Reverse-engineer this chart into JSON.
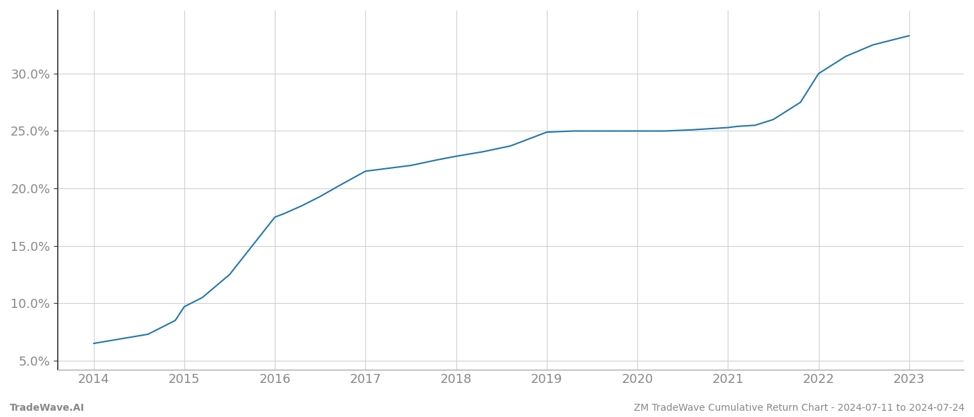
{
  "x_values": [
    2014.0,
    2014.3,
    2014.6,
    2014.9,
    2015.0,
    2015.2,
    2015.5,
    2015.8,
    2016.0,
    2016.1,
    2016.3,
    2016.5,
    2016.7,
    2017.0,
    2017.2,
    2017.5,
    2017.8,
    2018.0,
    2018.3,
    2018.6,
    2019.0,
    2019.3,
    2019.6,
    2020.0,
    2020.3,
    2020.6,
    2021.0,
    2021.1,
    2021.3,
    2021.5,
    2021.8,
    2022.0,
    2022.3,
    2022.6,
    2023.0
  ],
  "y_values": [
    6.5,
    6.9,
    7.3,
    8.5,
    9.7,
    10.5,
    12.5,
    15.5,
    17.5,
    17.8,
    18.5,
    19.3,
    20.2,
    21.5,
    21.7,
    22.0,
    22.5,
    22.8,
    23.2,
    23.7,
    24.9,
    25.0,
    25.0,
    25.0,
    25.0,
    25.1,
    25.3,
    25.4,
    25.5,
    26.0,
    27.5,
    30.0,
    31.5,
    32.5,
    33.3
  ],
  "line_color": "#2176ae",
  "line_width": 1.5,
  "bg_color": "#ffffff",
  "grid_color": "#d0d0d0",
  "xlabel": "",
  "ylabel": "",
  "xlim": [
    2013.6,
    2023.6
  ],
  "ylim": [
    4.2,
    35.5
  ],
  "yticks": [
    5.0,
    10.0,
    15.0,
    20.0,
    25.0,
    30.0
  ],
  "xticks": [
    2014,
    2015,
    2016,
    2017,
    2018,
    2019,
    2020,
    2021,
    2022,
    2023
  ],
  "footer_left": "TradeWave.AI",
  "footer_right": "ZM TradeWave Cumulative Return Chart - 2024-07-11 to 2024-07-24",
  "tick_label_color": "#888888",
  "footer_color": "#888888",
  "spine_color": "#aaaaaa",
  "left_spine_color": "#333333",
  "tick_fontsize": 13,
  "footer_fontsize": 10
}
